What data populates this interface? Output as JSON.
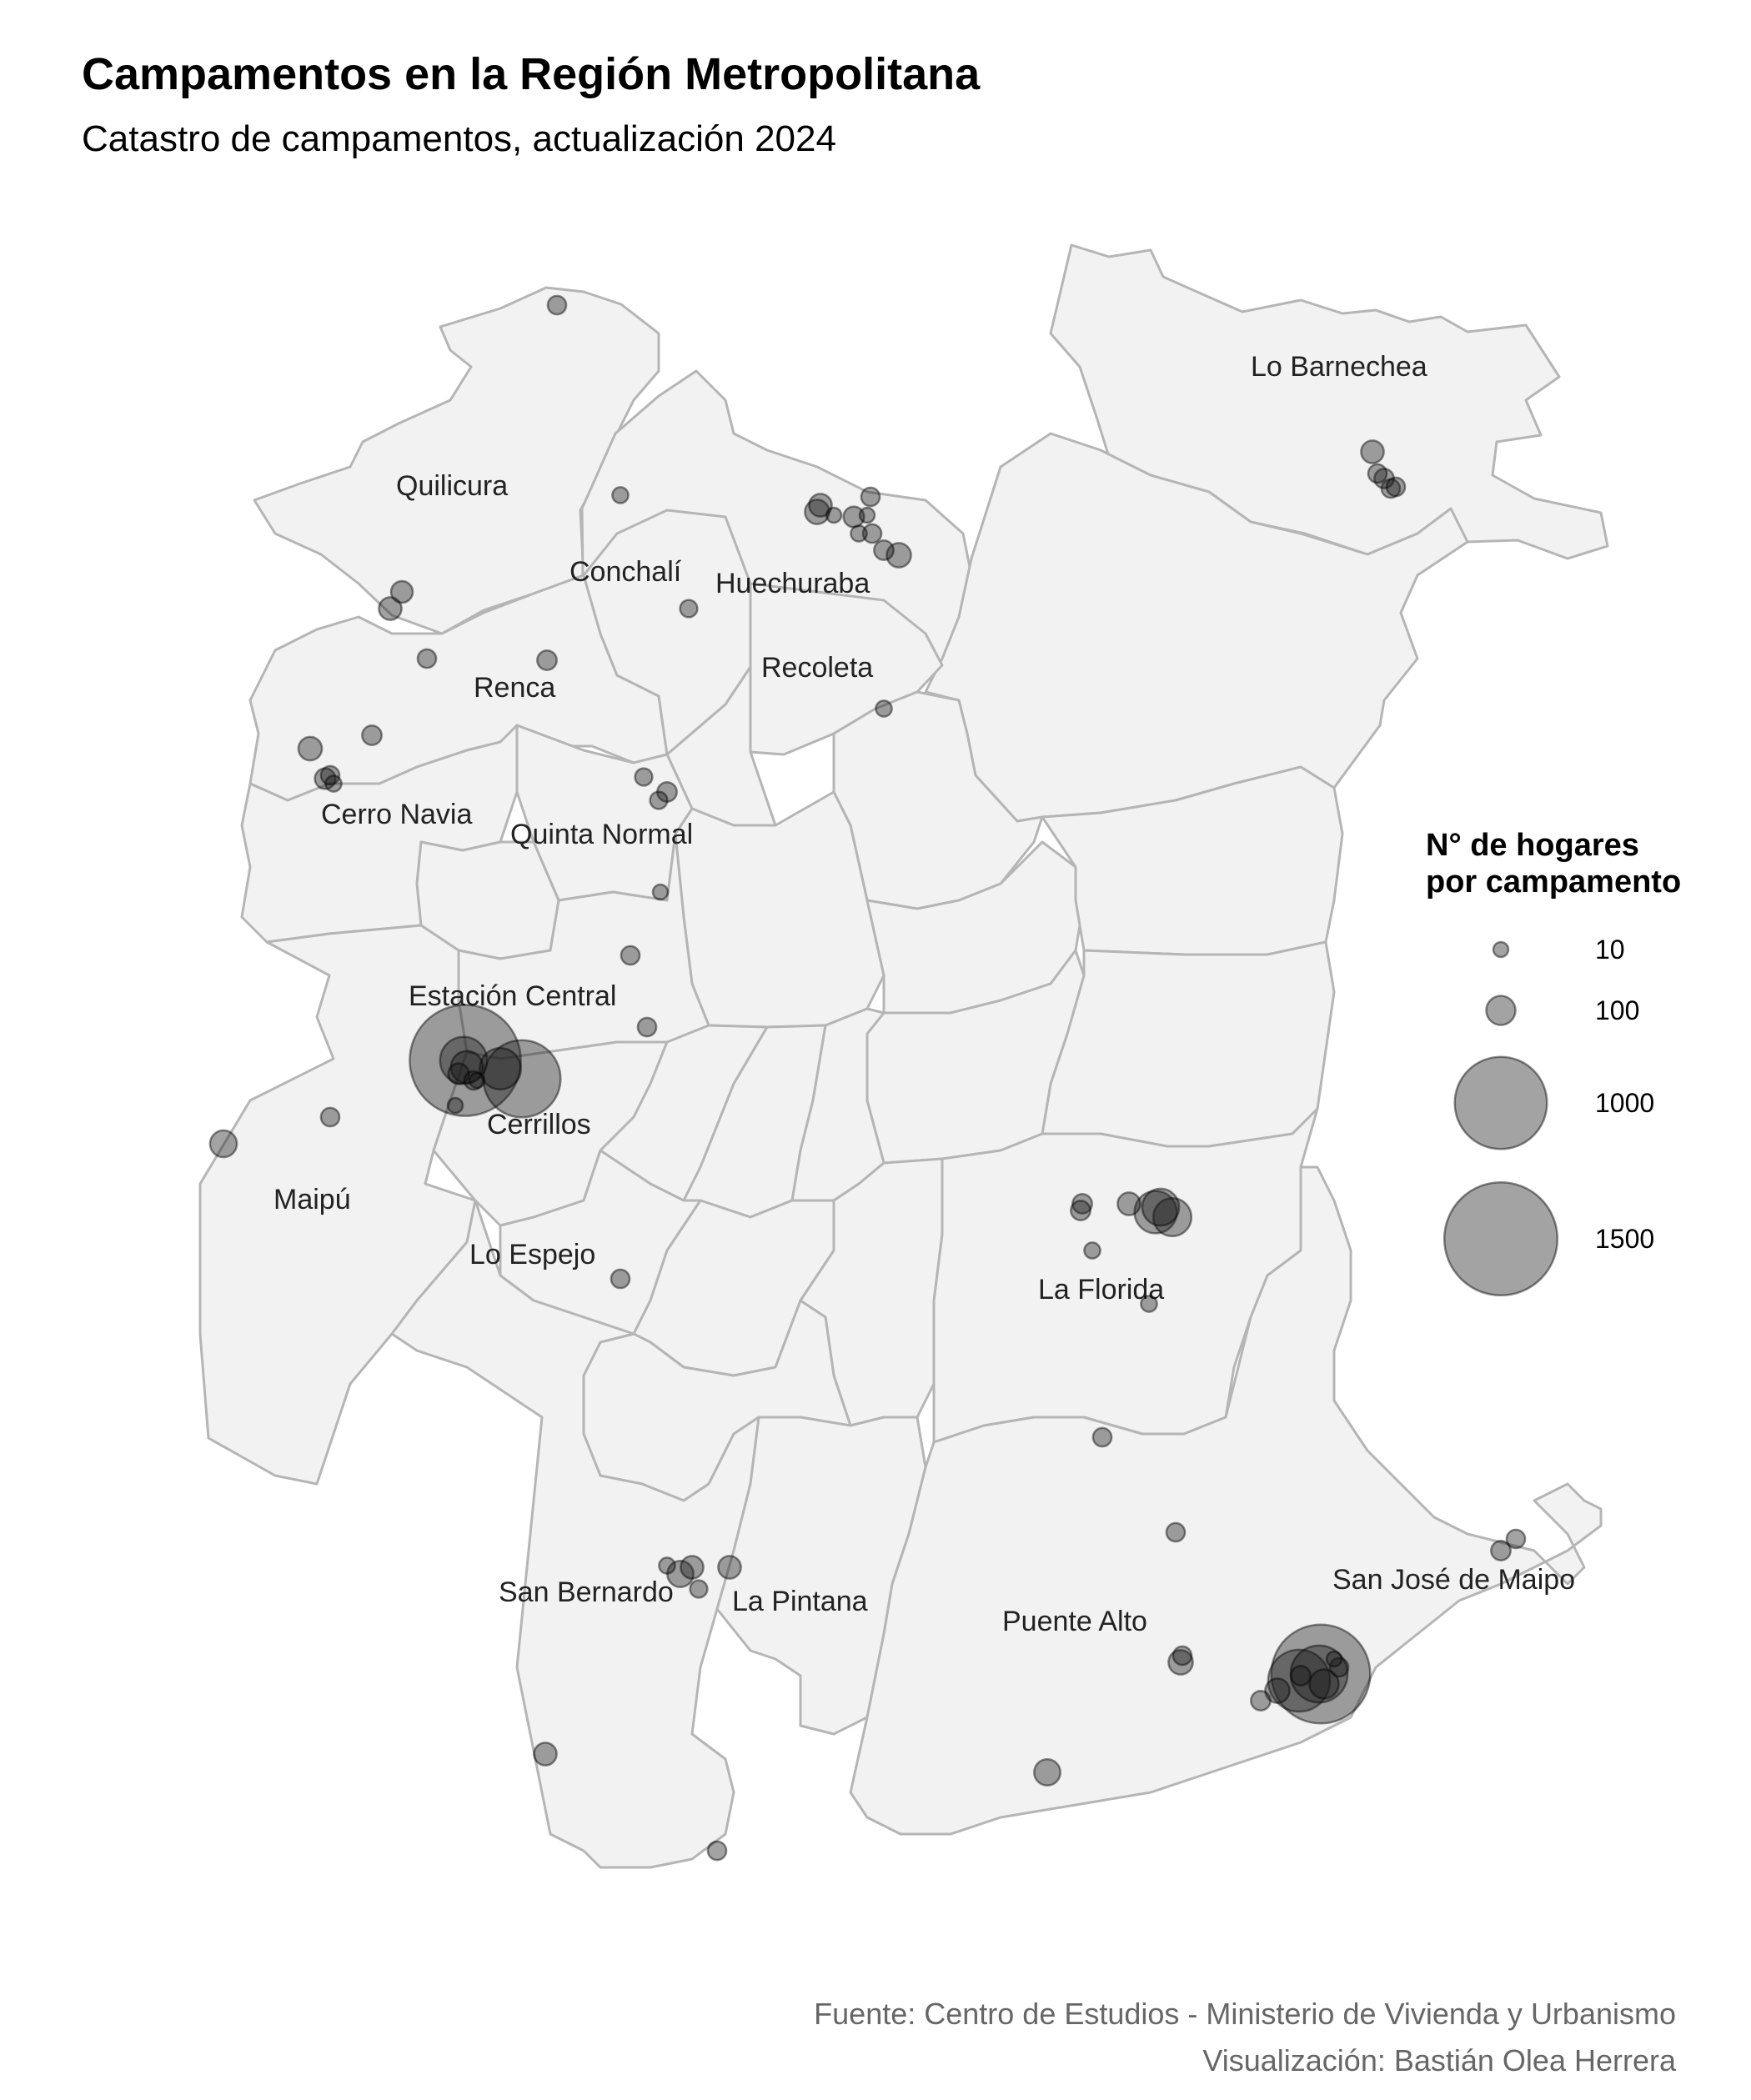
{
  "title": "Campamentos en la Región Metropolitana",
  "subtitle": "Catastro de campamentos, actualización 2024",
  "legend": {
    "title_line1": "N° de hogares",
    "title_line2": "por campamento",
    "entries": [
      {
        "label": "10",
        "value": 10
      },
      {
        "label": "100",
        "value": 100
      },
      {
        "label": "1000",
        "value": 1000
      },
      {
        "label": "1500",
        "value": 1500
      }
    ]
  },
  "comunas": {
    "lo_barnechea": "Lo Barnechea",
    "quilicura": "Quilicura",
    "conchali": "Conchalí",
    "huechuraba": "Huechuraba",
    "recoleta": "Recoleta",
    "renca": "Renca",
    "cerro_navia": "Cerro Navia",
    "quinta_normal": "Quinta Normal",
    "estacion_central": "Estación Central",
    "cerrillos": "Cerrillos",
    "maipu": "Maipú",
    "lo_espejo": "Lo Espejo",
    "la_florida": "La Florida",
    "san_bernardo": "San Bernardo",
    "la_pintana": "La Pintana",
    "puente_alto": "Puente Alto",
    "san_jose_de_maipo": "San José de Maipo"
  },
  "campamentos_hogares": [
    40,
    30,
    55,
    60,
    40,
    45,
    35,
    30,
    40,
    60,
    70,
    20,
    25,
    40,
    30,
    45,
    70,
    50,
    65,
    45,
    40,
    30,
    50,
    35,
    35,
    45,
    85,
    120,
    260,
    200,
    50,
    20,
    40,
    25,
    15,
    40,
    40,
    40,
    700,
    1450,
    60,
    40,
    45,
    40,
    40,
    160,
    210,
    170,
    60,
    45,
    45,
    30,
    30,
    40,
    40,
    380,
    100,
    45,
    40,
    70,
    45,
    25,
    45,
    40,
    70,
    40,
    80,
    1150,
    450,
    80,
    60,
    30,
    60,
    35,
    60,
    40,
    40
  ],
  "caption": {
    "source": "Fuente: Centro de Estudios - Ministerio de Vivienda y Urbanismo",
    "author": "Visualización: Bastián Olea Herrera"
  }
}
